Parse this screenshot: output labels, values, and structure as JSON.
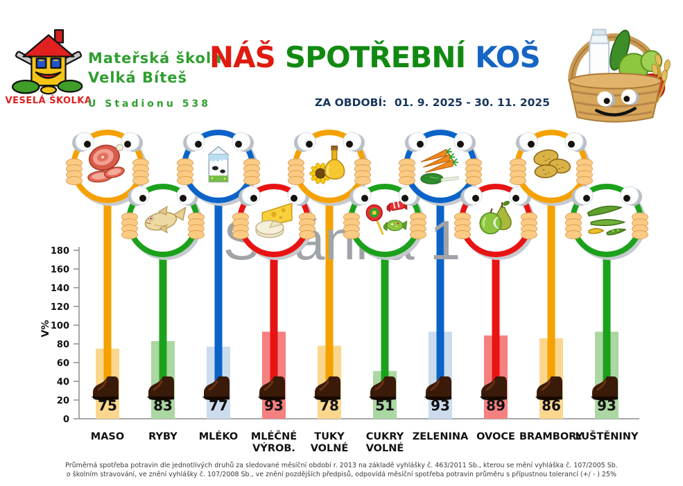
{
  "header": {
    "logo_caption": "VESELÁ ŠKOLKA",
    "school_line1": "Mateřská škola",
    "school_line2": "Velká Bíteš",
    "school_address": "U Stadionu 538",
    "title_parts": [
      {
        "text": "NÁŠ",
        "color": "#E01A10"
      },
      {
        "text": "SPOTŘEBNÍ",
        "color": "#128A12"
      },
      {
        "text": "KOŠ",
        "color": "#1565C4"
      }
    ],
    "period_label": "ZA OBDOBÍ:",
    "period_value": "01. 9. 2025 - 30. 11. 2025"
  },
  "watermark": "Stránka 1",
  "chart_data": {
    "type": "bar",
    "title": "NÁŠ SPOTŘEBNÍ KOŠ",
    "xlabel": "",
    "ylabel": "V%",
    "ylim": [
      0,
      180
    ],
    "ytick_step": 20,
    "grid": false,
    "legend": "none",
    "categories": [
      "MASO",
      "RYBY",
      "MLÉKO",
      "MLÉČNÉ VÝROB.",
      "TUKY VOLNÉ",
      "CUKRY VOLNÉ",
      "ZELENINA",
      "OVOCE",
      "BRAMBORY",
      "LUŠTĚNINY"
    ],
    "values": [
      75,
      83,
      77,
      93,
      78,
      51,
      93,
      89,
      86,
      93
    ],
    "items": [
      {
        "label": "MASO",
        "label_lines": [
          "MASO"
        ],
        "value": 75,
        "stick_color": "#F5A100",
        "bar_fill": "#FBD78E",
        "icon": "meat"
      },
      {
        "label": "RYBY",
        "label_lines": [
          "RYBY"
        ],
        "value": 83,
        "stick_color": "#1CA11C",
        "bar_fill": "#ABD7A2",
        "icon": "fish"
      },
      {
        "label": "MLÉKO",
        "label_lines": [
          "MLÉKO"
        ],
        "value": 77,
        "stick_color": "#0B63C8",
        "bar_fill": "#CCDCEE",
        "icon": "milk"
      },
      {
        "label": "MLÉČNÉ VÝROB.",
        "label_lines": [
          "MLÉČNÉ",
          "VÝROB."
        ],
        "value": 93,
        "stick_color": "#E81414",
        "bar_fill": "#F58080",
        "icon": "cheese"
      },
      {
        "label": "TUKY VOLNÉ",
        "label_lines": [
          "TUKY",
          "VOLNÉ"
        ],
        "value": 78,
        "stick_color": "#F5A100",
        "bar_fill": "#FBD78E",
        "icon": "oil"
      },
      {
        "label": "CUKRY VOLNÉ",
        "label_lines": [
          "CUKRY",
          "VOLNÉ"
        ],
        "value": 51,
        "stick_color": "#1CA11C",
        "bar_fill": "#ABD7A2",
        "icon": "sweets"
      },
      {
        "label": "ZELENINA",
        "label_lines": [
          "ZELENINA"
        ],
        "value": 93,
        "stick_color": "#0B63C8",
        "bar_fill": "#CCDCEE",
        "icon": "vegetables"
      },
      {
        "label": "OVOCE",
        "label_lines": [
          "OVOCE"
        ],
        "value": 89,
        "stick_color": "#E81414",
        "bar_fill": "#F58080",
        "icon": "fruit"
      },
      {
        "label": "BRAMBORY",
        "label_lines": [
          "BRAMBORY"
        ],
        "value": 86,
        "stick_color": "#F5A100",
        "bar_fill": "#FBD78E",
        "icon": "potatoes"
      },
      {
        "label": "LUŠTĚNINY",
        "label_lines": [
          "LUŠTĚNINY"
        ],
        "value": 93,
        "stick_color": "#1CA11C",
        "bar_fill": "#ABD7A2",
        "icon": "legumes"
      }
    ],
    "axis_color": "#8C8C8C",
    "tick_label_color": "#111111",
    "value_label_color": "#111111",
    "watermark_color": "#A0A3A7"
  },
  "footer": {
    "line1": "Průměrná spotřeba potravin dle jednotlivých druhů za sledované měsíční období r. 2013 na základě vyhlášky č. 463/2011 Sb., kterou se mění vyhláška č. 107/2005 Sb.",
    "line2": "o školním stravování, ve znění vyhlášky č. 107/2008 Sb., ve znění pozdějších předpisů, odpovídá měsíční spotřeba potravin průměru s přípustnou tolerancí (+/ - ) 25%"
  }
}
